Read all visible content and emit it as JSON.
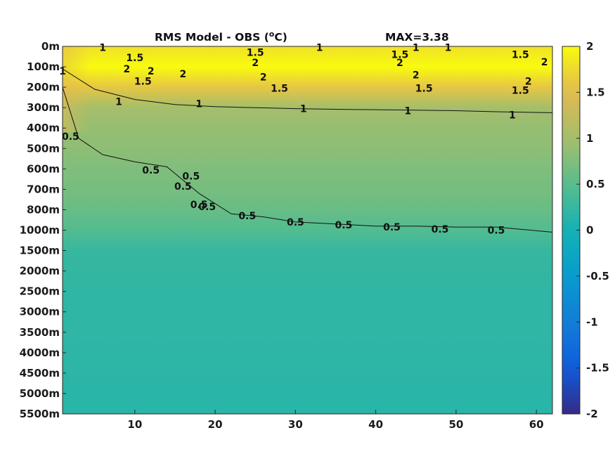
{
  "chart_data": {
    "type": "heatmap",
    "title": "RMS Model - OBS (",
    "title_superscript": "o",
    "title_unit": "C)",
    "annotation": "MAX=3.38",
    "x_ticks": [
      10,
      20,
      30,
      40,
      50,
      60
    ],
    "xlim": [
      1,
      62
    ],
    "y_tick_labels": [
      "0m",
      "100m",
      "200m",
      "300m",
      "400m",
      "500m",
      "600m",
      "700m",
      "800m",
      "1000m",
      "1500m",
      "2000m",
      "2500m",
      "3000m",
      "3500m",
      "4000m",
      "4500m",
      "5000m",
      "5500m"
    ],
    "colorbar_ticks": [
      "2",
      "1.5",
      "1",
      "0.5",
      "0",
      "-0.5",
      "-1",
      "-1.5",
      "-2"
    ],
    "clim": [
      -2,
      2
    ],
    "colormap": "parula",
    "depth_profile": {
      "levels": [
        "0m",
        "100m",
        "200m",
        "300m",
        "400m",
        "500m",
        "600m",
        "700m",
        "800m",
        "1000m",
        "1500m",
        "2000m",
        "2500m",
        "3000m",
        "3500m",
        "4000m",
        "4500m",
        "5000m",
        "5500m"
      ],
      "approx_values": [
        1.8,
        2.0,
        1.6,
        1.0,
        0.9,
        0.85,
        0.75,
        0.7,
        0.6,
        0.45,
        0.25,
        0.22,
        0.2,
        0.2,
        0.2,
        0.18,
        0.18,
        0.15,
        0.15
      ]
    },
    "contours": [
      {
        "level": "1",
        "x": [
          1,
          5,
          10,
          15,
          20,
          25,
          30,
          35,
          40,
          45,
          50,
          55,
          62
        ],
        "depth_index": [
          1.1,
          2.1,
          2.6,
          2.85,
          2.95,
          3.0,
          3.05,
          3.08,
          3.1,
          3.12,
          3.15,
          3.2,
          3.25
        ]
      },
      {
        "level": "0.5",
        "x": [
          1,
          3,
          6,
          10,
          14,
          18,
          22,
          26,
          30,
          35,
          40,
          45,
          50,
          55,
          62
        ],
        "depth_index": [
          2.0,
          4.5,
          5.3,
          5.65,
          5.9,
          7.2,
          8.2,
          8.35,
          8.6,
          8.7,
          8.8,
          8.8,
          8.85,
          8.85,
          9.1
        ]
      }
    ],
    "contour_labels": [
      {
        "text": "1",
        "x": 6,
        "depth_index": 0.05
      },
      {
        "text": "1.5",
        "x": 10,
        "depth_index": 0.55
      },
      {
        "text": "2",
        "x": 9,
        "depth_index": 1.1
      },
      {
        "text": "2",
        "x": 12,
        "depth_index": 1.2
      },
      {
        "text": "1.5",
        "x": 11,
        "depth_index": 1.7
      },
      {
        "text": "1",
        "x": 1,
        "depth_index": 1.2
      },
      {
        "text": "2",
        "x": 16,
        "depth_index": 1.35
      },
      {
        "text": "1",
        "x": 8,
        "depth_index": 2.7
      },
      {
        "text": "1.5",
        "x": 25,
        "depth_index": 0.3
      },
      {
        "text": "2",
        "x": 25,
        "depth_index": 0.8
      },
      {
        "text": "2",
        "x": 26,
        "depth_index": 1.5
      },
      {
        "text": "1.5",
        "x": 28,
        "depth_index": 2.05
      },
      {
        "text": "1",
        "x": 33,
        "depth_index": 0.05
      },
      {
        "text": "1",
        "x": 18,
        "depth_index": 2.8
      },
      {
        "text": "1",
        "x": 31,
        "depth_index": 3.05
      },
      {
        "text": "1.5",
        "x": 43,
        "depth_index": 0.4
      },
      {
        "text": "2",
        "x": 43,
        "depth_index": 0.8
      },
      {
        "text": "1",
        "x": 45,
        "depth_index": 0.05
      },
      {
        "text": "1",
        "x": 49,
        "depth_index": 0.05
      },
      {
        "text": "2",
        "x": 45,
        "depth_index": 1.4
      },
      {
        "text": "1.5",
        "x": 46,
        "depth_index": 2.05
      },
      {
        "text": "1",
        "x": 44,
        "depth_index": 3.15
      },
      {
        "text": "1.5",
        "x": 58,
        "depth_index": 0.4
      },
      {
        "text": "2",
        "x": 61,
        "depth_index": 0.75
      },
      {
        "text": "2",
        "x": 59,
        "depth_index": 1.7
      },
      {
        "text": "1.5",
        "x": 58,
        "depth_index": 2.15
      },
      {
        "text": "1",
        "x": 57,
        "depth_index": 3.35
      },
      {
        "text": "0.5",
        "x": 2,
        "depth_index": 4.4
      },
      {
        "text": "0.5",
        "x": 12,
        "depth_index": 6.05
      },
      {
        "text": "0.5",
        "x": 17,
        "depth_index": 6.35
      },
      {
        "text": "0.5",
        "x": 16,
        "depth_index": 6.85
      },
      {
        "text": "0.5",
        "x": 18,
        "depth_index": 7.75
      },
      {
        "text": "0.5",
        "x": 19,
        "depth_index": 7.85
      },
      {
        "text": "0.5",
        "x": 24,
        "depth_index": 8.3
      },
      {
        "text": "0.5",
        "x": 30,
        "depth_index": 8.6
      },
      {
        "text": "0.5",
        "x": 36,
        "depth_index": 8.75
      },
      {
        "text": "0.5",
        "x": 42,
        "depth_index": 8.85
      },
      {
        "text": "0.5",
        "x": 48,
        "depth_index": 8.95
      },
      {
        "text": "0.5",
        "x": 55,
        "depth_index": 9.0
      }
    ]
  }
}
